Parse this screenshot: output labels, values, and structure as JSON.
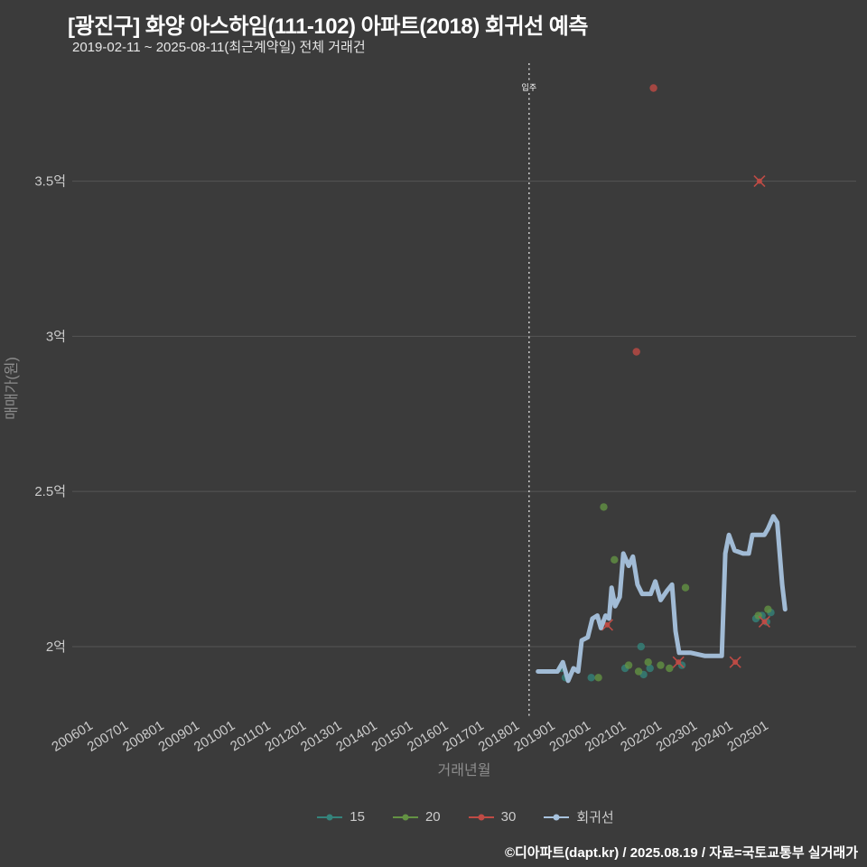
{
  "page": {
    "title": "[광진구] 화양 아스하임(111-102) 아파트(2018) 회귀선 예측",
    "subtitle": "2019-02-11 ~ 2025-08-11(최근계약일) 전체 거래건",
    "footer": "©디아파트(dapt.kr) / 2025.08.19 / 자료=국토교통부 실거래가"
  },
  "colors": {
    "background": "#3b3b3b",
    "grid": "#565656",
    "tick_label": "#cbcbcb",
    "axis_title": "#8d8d8d",
    "annotation_line": "#e4e4e4",
    "series_15": "#35837b",
    "series_20": "#639243",
    "series_30": "#bf4b45",
    "regression": "#a7c2dd"
  },
  "chart_data": {
    "type": "scatter",
    "title": "[광진구] 화양 아스하임(111-102) 아파트(2018) 회귀선 예측",
    "subtitle": "2019-02-11 ~ 2025-08-11(최근계약일) 전체 거래건",
    "xlabel": "거래년월",
    "ylabel": "매매가(원)",
    "legend_position": "bottom",
    "grid": "horizontal-only",
    "xlim_years": [
      2005.55,
      2027.6
    ],
    "ylim": [
      1.77,
      3.88
    ],
    "x_ticks": [
      "200601",
      "200701",
      "200801",
      "200901",
      "201001",
      "201101",
      "201201",
      "201301",
      "201401",
      "201501",
      "201601",
      "201701",
      "201801",
      "201901",
      "202001",
      "202101",
      "202201",
      "202301",
      "202401",
      "202501"
    ],
    "y_ticks": [
      {
        "value": 2.0,
        "label": "2억"
      },
      {
        "value": 2.5,
        "label": "2.5억"
      },
      {
        "value": 3.0,
        "label": "3억"
      },
      {
        "value": 3.5,
        "label": "3.5억"
      }
    ],
    "annotation": {
      "label": "입주",
      "x_year": 2018.4
    },
    "series": [
      {
        "name": "15",
        "color_key": "series_15",
        "kind": "scatter",
        "points": [
          [
            2019.3,
            1.93
          ],
          [
            2019.42,
            1.9
          ],
          [
            2020.15,
            1.9
          ],
          [
            2021.1,
            1.93
          ],
          [
            2021.55,
            2.0
          ],
          [
            2021.62,
            1.91
          ],
          [
            2021.8,
            1.93
          ],
          [
            2022.7,
            1.94
          ],
          [
            2024.78,
            2.09
          ],
          [
            2024.95,
            2.1
          ],
          [
            2025.08,
            2.08
          ],
          [
            2025.2,
            2.11
          ]
        ]
      },
      {
        "name": "20",
        "color_key": "series_20",
        "kind": "scatter",
        "points": [
          [
            2020.5,
            2.45
          ],
          [
            2020.8,
            2.28
          ],
          [
            2020.35,
            1.9
          ],
          [
            2021.2,
            1.94
          ],
          [
            2021.48,
            1.92
          ],
          [
            2021.75,
            1.95
          ],
          [
            2022.1,
            1.94
          ],
          [
            2022.35,
            1.93
          ],
          [
            2022.8,
            2.19
          ],
          [
            2024.85,
            2.1
          ],
          [
            2025.12,
            2.12
          ]
        ]
      },
      {
        "name": "30",
        "color_key": "series_30",
        "kind": "scatter",
        "points": [
          [
            2021.9,
            3.8
          ],
          [
            2021.42,
            2.95
          ]
        ],
        "cross_points": [
          [
            2020.6,
            2.07
          ],
          [
            2022.6,
            1.95
          ],
          [
            2024.2,
            1.95
          ],
          [
            2024.88,
            3.5
          ],
          [
            2025.02,
            2.08
          ]
        ]
      },
      {
        "name": "회귀선",
        "color_key": "regression",
        "kind": "line",
        "points": [
          [
            2018.65,
            1.92
          ],
          [
            2019.2,
            1.92
          ],
          [
            2019.35,
            1.95
          ],
          [
            2019.5,
            1.89
          ],
          [
            2019.65,
            1.93
          ],
          [
            2019.78,
            1.92
          ],
          [
            2019.88,
            2.02
          ],
          [
            2020.05,
            2.03
          ],
          [
            2020.18,
            2.09
          ],
          [
            2020.32,
            2.1
          ],
          [
            2020.42,
            2.06
          ],
          [
            2020.55,
            2.1
          ],
          [
            2020.65,
            2.09
          ],
          [
            2020.72,
            2.19
          ],
          [
            2020.82,
            2.13
          ],
          [
            2020.95,
            2.16
          ],
          [
            2021.05,
            2.3
          ],
          [
            2021.2,
            2.26
          ],
          [
            2021.32,
            2.29
          ],
          [
            2021.45,
            2.2
          ],
          [
            2021.58,
            2.17
          ],
          [
            2021.82,
            2.17
          ],
          [
            2021.95,
            2.21
          ],
          [
            2022.1,
            2.15
          ],
          [
            2022.28,
            2.18
          ],
          [
            2022.42,
            2.2
          ],
          [
            2022.52,
            2.05
          ],
          [
            2022.62,
            1.98
          ],
          [
            2022.95,
            1.98
          ],
          [
            2023.35,
            1.97
          ],
          [
            2023.82,
            1.97
          ],
          [
            2023.92,
            2.3
          ],
          [
            2024.02,
            2.36
          ],
          [
            2024.18,
            2.31
          ],
          [
            2024.42,
            2.3
          ],
          [
            2024.58,
            2.3
          ],
          [
            2024.68,
            2.36
          ],
          [
            2024.88,
            2.36
          ],
          [
            2025.02,
            2.36
          ],
          [
            2025.12,
            2.38
          ],
          [
            2025.27,
            2.42
          ],
          [
            2025.38,
            2.4
          ],
          [
            2025.52,
            2.2
          ],
          [
            2025.6,
            2.12
          ]
        ]
      }
    ]
  }
}
